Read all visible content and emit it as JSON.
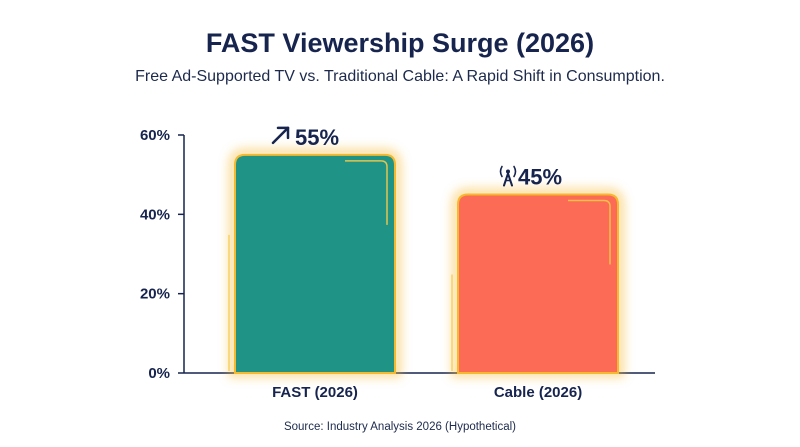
{
  "header": {
    "title": "FAST Viewership Surge (2026)",
    "subtitle": "Free Ad-Supported TV vs. Traditional Cable: A Rapid Shift in Consumption."
  },
  "footer": {
    "source": "Source: Industry Analysis 2026 (Hypothetical)"
  },
  "chart_data": {
    "type": "bar",
    "title": "FAST Viewership Surge (2026)",
    "subtitle": "Free Ad-Supported TV vs. Traditional Cable: A Rapid Shift in Consumption.",
    "categories": [
      "FAST (2026)",
      "Cable (2026)"
    ],
    "values": [
      55,
      45
    ],
    "data_labels": [
      "55%",
      "45%"
    ],
    "label_icons": [
      "trend-up-arrow-icon",
      "broadcast-antenna-icon"
    ],
    "bar_colors": [
      "#1f9486",
      "#fb6b55"
    ],
    "glow_color": "#f5b82e",
    "ylim": [
      0,
      60
    ],
    "yticks": [
      0,
      20,
      40,
      60
    ],
    "ytick_labels": [
      "0%",
      "20%",
      "40%",
      "60%"
    ],
    "xlabel": "",
    "ylabel": "",
    "grid": false
  }
}
